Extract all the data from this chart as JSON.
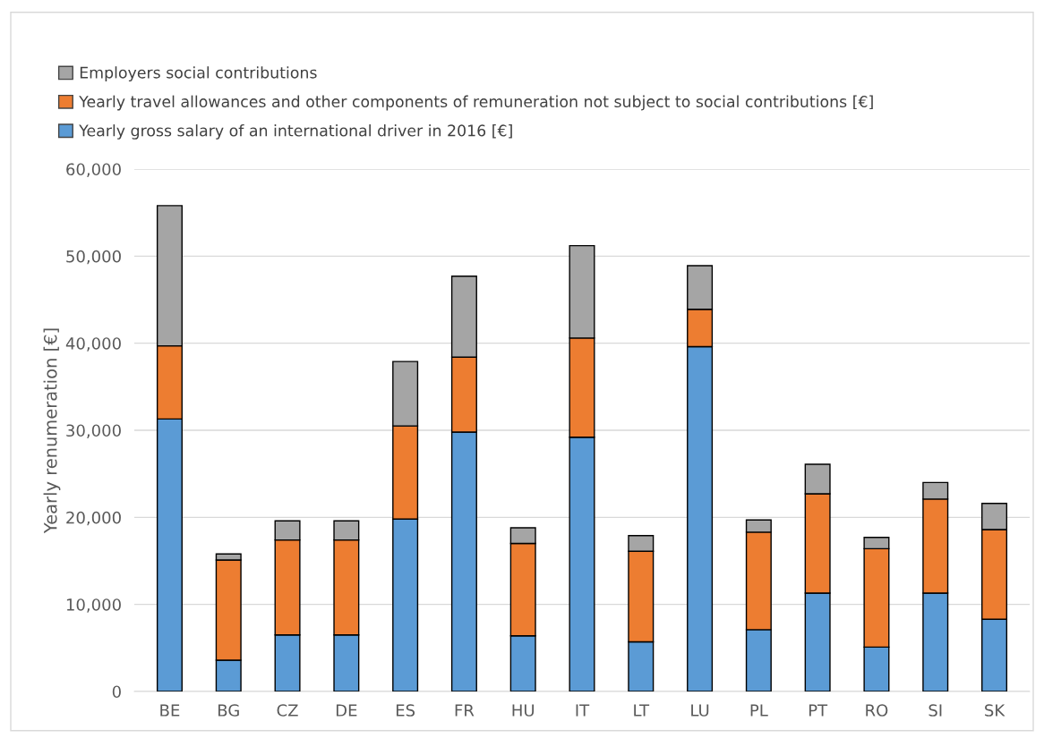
{
  "chart_data": {
    "type": "bar",
    "stacked": true,
    "ylabel": "Yearly renumeration [€]",
    "categories": [
      "BE",
      "BG",
      "CZ",
      "DE",
      "ES",
      "FR",
      "HU",
      "IT",
      "LT",
      "LU",
      "PL",
      "PT",
      "RO",
      "SI",
      "SK"
    ],
    "series": [
      {
        "name": "Yearly gross salary of an international driver in 2016 [€]",
        "color": "#5b9bd5",
        "values": [
          31300,
          3600,
          6500,
          6500,
          19800,
          29800,
          6400,
          29200,
          5700,
          39600,
          7100,
          11300,
          5100,
          11300,
          8300
        ]
      },
      {
        "name": "Yearly travel allowances and other components of remuneration not subject to social contributions [€]",
        "color": "#ed7d31",
        "values": [
          8400,
          11500,
          10900,
          10900,
          10700,
          8600,
          10600,
          11400,
          10400,
          4300,
          11200,
          11400,
          11300,
          10800,
          10300
        ]
      },
      {
        "name": "Employers social contributions",
        "color": "#a5a5a5",
        "values": [
          16100,
          700,
          2200,
          2200,
          7400,
          9300,
          1800,
          10600,
          1800,
          5000,
          1400,
          3400,
          1300,
          1900,
          3000
        ]
      }
    ],
    "ylim": [
      0,
      60000
    ],
    "yticks": [
      {
        "value": 0,
        "label": "0"
      },
      {
        "value": 10000,
        "label": "10,000"
      },
      {
        "value": 20000,
        "label": "20,000"
      },
      {
        "value": 30000,
        "label": "30,000"
      },
      {
        "value": 40000,
        "label": "40,000"
      },
      {
        "value": 50000,
        "label": "50,000"
      },
      {
        "value": 60000,
        "label": "60,000"
      }
    ],
    "grid": "y",
    "legend": "top left"
  }
}
